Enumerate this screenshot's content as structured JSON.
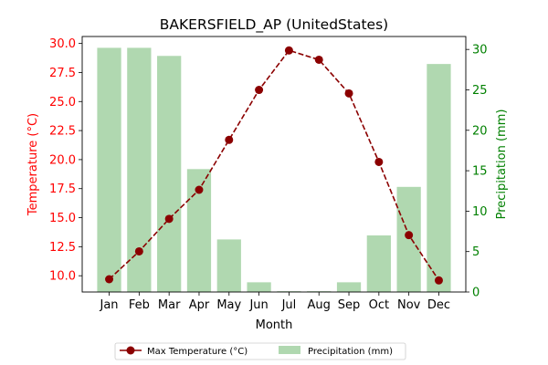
{
  "chart_data": {
    "type": "bar+line",
    "title": "BAKERSFIELD_AP (UnitedStates)",
    "xlabel": "Month",
    "categories": [
      "Jan",
      "Feb",
      "Mar",
      "Apr",
      "May",
      "Jun",
      "Jul",
      "Aug",
      "Sep",
      "Oct",
      "Nov",
      "Dec"
    ],
    "left_axis": {
      "label": "Temperature (°C)",
      "color": "#ff0000",
      "ylim": [
        8.6,
        30.6
      ],
      "ticks": [
        "10.0",
        "12.5",
        "15.0",
        "17.5",
        "20.0",
        "22.5",
        "25.0",
        "27.5",
        "30.0"
      ]
    },
    "right_axis": {
      "label": "Precipitation (mm)",
      "color": "#008000",
      "ylim": [
        0,
        31.6
      ],
      "ticks": [
        "0",
        "5",
        "10",
        "15",
        "20",
        "25",
        "30"
      ]
    },
    "series": [
      {
        "name": "Max Temperature (°C)",
        "type": "line",
        "axis": "left",
        "color": "#8b0000",
        "line_style": "dashed",
        "marker": "circle",
        "values": [
          9.7,
          12.1,
          14.9,
          17.4,
          21.7,
          26.0,
          29.4,
          28.6,
          25.7,
          19.8,
          13.5,
          9.6
        ]
      },
      {
        "name": "Precipitation (mm)",
        "type": "bar",
        "axis": "right",
        "color": "#b0d8b0",
        "values": [
          30.2,
          30.2,
          29.2,
          15.2,
          6.5,
          1.2,
          0.1,
          0.1,
          1.2,
          7.0,
          13.0,
          28.2
        ]
      }
    ],
    "legend": {
      "placement": "bottom-center",
      "entries": [
        "Max Temperature (°C)",
        "Precipitation (mm)"
      ]
    },
    "grid": false
  }
}
